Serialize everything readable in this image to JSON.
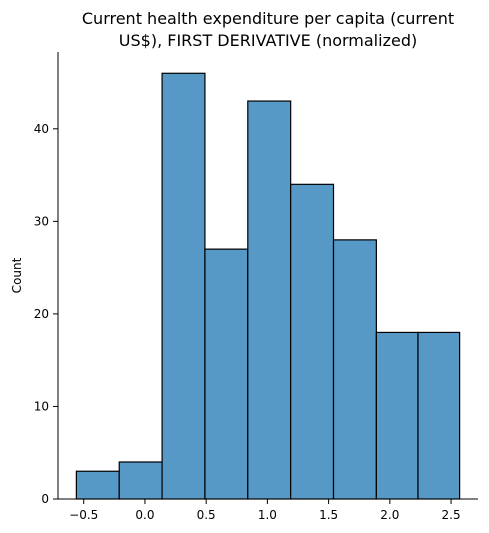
{
  "chart_data": {
    "type": "bar",
    "title_lines": [
      "Current health expenditure per capita (current",
      "US$), FIRST DERIVATIVE (normalized)"
    ],
    "xlabel": "",
    "ylabel": "Count",
    "bar_color": "#5799c6",
    "bins": [
      {
        "x0": -0.56,
        "x1": -0.21,
        "count": 3
      },
      {
        "x0": -0.21,
        "x1": 0.14,
        "count": 4
      },
      {
        "x0": 0.14,
        "x1": 0.49,
        "count": 46
      },
      {
        "x0": 0.49,
        "x1": 0.84,
        "count": 27
      },
      {
        "x0": 0.84,
        "x1": 1.19,
        "count": 43
      },
      {
        "x0": 1.19,
        "x1": 1.54,
        "count": 34
      },
      {
        "x0": 1.54,
        "x1": 1.89,
        "count": 28
      },
      {
        "x0": 1.89,
        "x1": 2.23,
        "count": 18
      },
      {
        "x0": 2.23,
        "x1": 2.57,
        "count": 18
      }
    ],
    "xlim": [
      -0.71,
      2.72
    ],
    "ylim": [
      0,
      48.3
    ],
    "x_ticks": [
      {
        "value": -0.5,
        "label": "−0.5"
      },
      {
        "value": 0.0,
        "label": "0.0"
      },
      {
        "value": 0.5,
        "label": "0.5"
      },
      {
        "value": 1.0,
        "label": "1.0"
      },
      {
        "value": 1.5,
        "label": "1.5"
      },
      {
        "value": 2.0,
        "label": "2.0"
      },
      {
        "value": 2.5,
        "label": "2.5"
      }
    ],
    "y_ticks": [
      {
        "value": 0,
        "label": "0"
      },
      {
        "value": 10,
        "label": "10"
      },
      {
        "value": 20,
        "label": "20"
      },
      {
        "value": 30,
        "label": "30"
      },
      {
        "value": 40,
        "label": "40"
      }
    ],
    "grid": false,
    "legend": "none"
  }
}
